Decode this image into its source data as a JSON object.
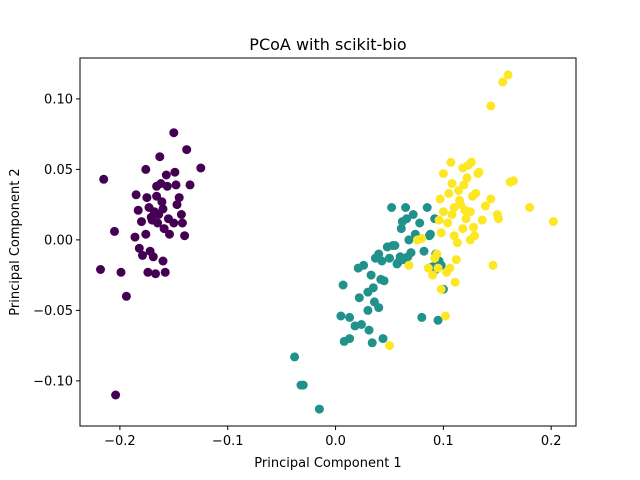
{
  "chart_data": {
    "type": "scatter",
    "title": "PCoA with scikit-bio",
    "xlabel": "Principal Component 1",
    "ylabel": "Principal Component 2",
    "xlim": [
      -0.237,
      0.223
    ],
    "ylim": [
      -0.132,
      0.129
    ],
    "xticks": [
      -0.2,
      -0.1,
      0.0,
      0.1,
      0.2
    ],
    "xtick_labels": [
      "−0.2",
      "−0.1",
      "0.0",
      "0.1",
      "0.2"
    ],
    "yticks": [
      -0.1,
      -0.05,
      0.0,
      0.05,
      0.1
    ],
    "ytick_labels": [
      "−0.10",
      "−0.05",
      "0.00",
      "0.05",
      "0.10"
    ],
    "grid": false,
    "legend": "none",
    "series": [
      {
        "color": "#440154",
        "points": [
          [
            -0.215,
            0.043
          ],
          [
            -0.218,
            -0.021
          ],
          [
            -0.205,
            0.006
          ],
          [
            -0.199,
            -0.023
          ],
          [
            -0.194,
            -0.04
          ],
          [
            -0.204,
            -0.11
          ],
          [
            -0.186,
            0.002
          ],
          [
            -0.185,
            0.032
          ],
          [
            -0.183,
            0.021
          ],
          [
            -0.18,
            0.013
          ],
          [
            -0.179,
            -0.011
          ],
          [
            -0.176,
            0.05
          ],
          [
            -0.176,
            0.004
          ],
          [
            -0.175,
            0.03
          ],
          [
            -0.174,
            -0.023
          ],
          [
            -0.173,
            0.023
          ],
          [
            -0.172,
            -0.008
          ],
          [
            -0.171,
            0.016
          ],
          [
            -0.17,
            0.014
          ],
          [
            -0.169,
            -0.012
          ],
          [
            -0.168,
            0.02
          ],
          [
            -0.167,
            -0.024
          ],
          [
            -0.166,
            0.038
          ],
          [
            -0.166,
            0.031
          ],
          [
            -0.165,
            0.012
          ],
          [
            -0.164,
            0.018
          ],
          [
            -0.163,
            0.059
          ],
          [
            -0.162,
            0.04
          ],
          [
            -0.161,
            0.027
          ],
          [
            -0.16,
            0.022
          ],
          [
            -0.159,
            0.008
          ],
          [
            -0.158,
            -0.023
          ],
          [
            -0.157,
            0.046
          ],
          [
            -0.156,
            0.038
          ],
          [
            -0.155,
            0.015
          ],
          [
            -0.154,
            0.004
          ],
          [
            -0.15,
            0.076
          ],
          [
            -0.149,
            0.048
          ],
          [
            -0.148,
            0.039
          ],
          [
            -0.147,
            0.025
          ],
          [
            -0.145,
            0.03
          ],
          [
            -0.143,
            0.018
          ],
          [
            -0.142,
            0.012
          ],
          [
            -0.14,
            0.003
          ],
          [
            -0.138,
            0.064
          ],
          [
            -0.135,
            0.039
          ],
          [
            -0.125,
            0.051
          ],
          [
            -0.16,
            -0.015
          ],
          [
            -0.182,
            -0.006
          ],
          [
            -0.15,
            0.012
          ]
        ]
      },
      {
        "color": "#21918c",
        "points": [
          [
            -0.038,
            -0.083
          ],
          [
            -0.032,
            -0.103
          ],
          [
            -0.03,
            -0.103
          ],
          [
            -0.015,
            -0.12
          ],
          [
            0.005,
            -0.054
          ],
          [
            0.007,
            -0.032
          ],
          [
            0.008,
            -0.072
          ],
          [
            0.013,
            -0.055
          ],
          [
            0.013,
            -0.07
          ],
          [
            0.018,
            -0.061
          ],
          [
            0.021,
            -0.02
          ],
          [
            0.022,
            -0.041
          ],
          [
            0.024,
            -0.06
          ],
          [
            0.026,
            -0.018
          ],
          [
            0.03,
            -0.037
          ],
          [
            0.03,
            -0.05
          ],
          [
            0.031,
            -0.064
          ],
          [
            0.033,
            -0.025
          ],
          [
            0.034,
            -0.073
          ],
          [
            0.035,
            -0.034
          ],
          [
            0.036,
            -0.044
          ],
          [
            0.037,
            -0.013
          ],
          [
            0.04,
            -0.01
          ],
          [
            0.04,
            -0.048
          ],
          [
            0.042,
            -0.028
          ],
          [
            0.043,
            -0.015
          ],
          [
            0.044,
            -0.07
          ],
          [
            0.045,
            -0.029
          ],
          [
            0.048,
            -0.005
          ],
          [
            0.05,
            -0.013
          ],
          [
            0.052,
            0.023
          ],
          [
            0.053,
            -0.004
          ],
          [
            0.055,
            -0.004
          ],
          [
            0.057,
            -0.017
          ],
          [
            0.058,
            -0.016
          ],
          [
            0.06,
            -0.012
          ],
          [
            0.061,
            0.008
          ],
          [
            0.062,
            0.013
          ],
          [
            0.063,
            -0.014
          ],
          [
            0.065,
            0.023
          ],
          [
            0.066,
            0.015
          ],
          [
            0.067,
            -0.012
          ],
          [
            0.068,
            0.0
          ],
          [
            0.07,
            -0.009
          ],
          [
            0.072,
            0.018
          ],
          [
            0.074,
            0.004
          ],
          [
            0.078,
            0.012
          ],
          [
            0.082,
            -0.008
          ],
          [
            0.08,
            -0.055
          ],
          [
            0.085,
            0.023
          ],
          [
            0.088,
            0.004
          ],
          [
            0.09,
            -0.019
          ],
          [
            0.092,
            0.015
          ],
          [
            0.093,
            -0.01
          ],
          [
            0.095,
            -0.057
          ],
          [
            0.096,
            -0.015
          ],
          [
            0.098,
            -0.018
          ],
          [
            0.1,
            -0.035
          ],
          [
            0.093,
            -0.021
          ],
          [
            0.087,
            0.003
          ]
        ]
      },
      {
        "color": "#fde725",
        "points": [
          [
            0.05,
            -0.075
          ],
          [
            0.068,
            -0.018
          ],
          [
            0.076,
            0.0
          ],
          [
            0.08,
            0.001
          ],
          [
            0.086,
            -0.02
          ],
          [
            0.09,
            -0.025
          ],
          [
            0.092,
            -0.013
          ],
          [
            0.094,
            -0.01
          ],
          [
            0.095,
            -0.02
          ],
          [
            0.096,
            0.014
          ],
          [
            0.097,
            0.029
          ],
          [
            0.098,
            -0.035
          ],
          [
            0.098,
            0.005
          ],
          [
            0.1,
            0.047
          ],
          [
            0.1,
            0.02
          ],
          [
            0.102,
            -0.054
          ],
          [
            0.103,
            -0.023
          ],
          [
            0.104,
            0.012
          ],
          [
            0.105,
            0.033
          ],
          [
            0.107,
            0.055
          ],
          [
            0.108,
            0.018
          ],
          [
            0.11,
            0.003
          ],
          [
            0.11,
            0.023
          ],
          [
            0.111,
            -0.03
          ],
          [
            0.112,
            -0.014
          ],
          [
            0.114,
            0.035
          ],
          [
            0.115,
            0.028
          ],
          [
            0.116,
            0.025
          ],
          [
            0.118,
            0.051
          ],
          [
            0.119,
            0.039
          ],
          [
            0.12,
            0.021
          ],
          [
            0.121,
            0.015
          ],
          [
            0.123,
            0.053
          ],
          [
            0.125,
            0.0
          ],
          [
            0.126,
            0.055
          ],
          [
            0.127,
            0.031
          ],
          [
            0.129,
            0.003
          ],
          [
            0.13,
            0.033
          ],
          [
            0.132,
            0.047
          ],
          [
            0.133,
            0.048
          ],
          [
            0.144,
            0.095
          ],
          [
            0.146,
            -0.018
          ],
          [
            0.15,
            0.018
          ],
          [
            0.151,
            0.015
          ],
          [
            0.155,
            0.112
          ],
          [
            0.16,
            0.117
          ],
          [
            0.162,
            0.041
          ],
          [
            0.165,
            0.042
          ],
          [
            0.18,
            0.023
          ],
          [
            0.202,
            0.013
          ],
          [
            0.144,
            0.029
          ],
          [
            0.136,
            0.014
          ],
          [
            0.128,
            0.009
          ],
          [
            0.118,
            0.008
          ],
          [
            0.125,
            0.02
          ],
          [
            0.106,
            -0.02
          ],
          [
            0.108,
            0.04
          ],
          [
            0.139,
            0.024
          ],
          [
            0.113,
            -0.002
          ],
          [
            0.122,
            0.044
          ]
        ]
      }
    ]
  }
}
